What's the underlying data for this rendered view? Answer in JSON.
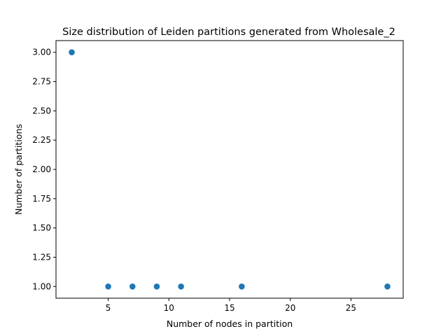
{
  "chart_data": {
    "type": "scatter",
    "title": "Size distribution of Leiden partitions generated from Wholesale_2",
    "xlabel": "Number of nodes in partition",
    "ylabel": "Number of partitions",
    "x": [
      2,
      5,
      7,
      9,
      11,
      16,
      28
    ],
    "y": [
      3,
      1,
      1,
      1,
      1,
      1,
      1
    ],
    "xlim": [
      0.7,
      29.3
    ],
    "ylim": [
      0.9,
      3.1
    ],
    "xticks": [
      5,
      10,
      15,
      20,
      25
    ],
    "xtick_labels": [
      "5",
      "10",
      "15",
      "20",
      "25"
    ],
    "yticks": [
      1.0,
      1.25,
      1.5,
      1.75,
      2.0,
      2.25,
      2.5,
      2.75,
      3.0
    ],
    "ytick_labels": [
      "1.00",
      "1.25",
      "1.50",
      "1.75",
      "2.00",
      "2.25",
      "2.50",
      "2.75",
      "3.00"
    ],
    "grid": false,
    "marker_color": "#1f77b4"
  }
}
